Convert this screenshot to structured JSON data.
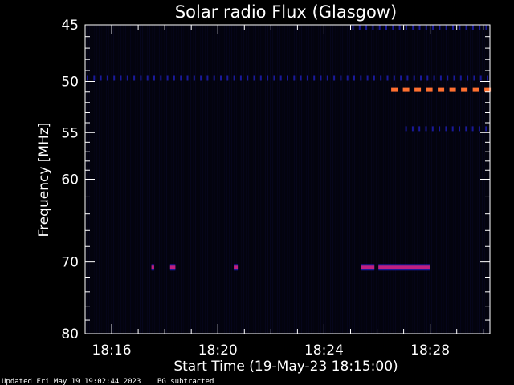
{
  "chart_data": {
    "type": "heatmap",
    "title": "Solar radio Flux (Glasgow)",
    "xlabel": "Start Time (19-May-23 18:15:00)",
    "ylabel": "Frequency [MHz]",
    "y_scale": "log",
    "ylim": [
      45,
      80
    ],
    "xlim": [
      "18:15:00",
      "18:30:15"
    ],
    "x_ticks": [
      "18:16",
      "18:20",
      "18:24",
      "18:28"
    ],
    "y_ticks": [
      45,
      50,
      55,
      60,
      70,
      80
    ],
    "grid": false,
    "colors": {
      "background": "#000000",
      "plot_bg": "#03030e",
      "axis": "#ffffff",
      "low": "#1a1a9a",
      "mid": "#c02080",
      "high": "#ff7030"
    },
    "features": [
      {
        "name": "band",
        "freq_mhz": 49.7,
        "start": "18:15:00",
        "end": "18:30:15",
        "intensity": "low"
      },
      {
        "name": "band",
        "freq_mhz": 45.2,
        "start": "18:25:00",
        "end": "18:30:15",
        "intensity": "low"
      },
      {
        "name": "band",
        "freq_mhz": 54.6,
        "start": "18:27:00",
        "end": "18:30:15",
        "intensity": "low"
      },
      {
        "name": "band",
        "freq_mhz": 50.8,
        "start": "18:26:30",
        "end": "18:30:15",
        "intensity": "high"
      },
      {
        "name": "burst",
        "freq_mhz": 70.7,
        "start": "18:17:30",
        "end": "18:17:36",
        "intensity": "mid"
      },
      {
        "name": "burst",
        "freq_mhz": 70.7,
        "start": "18:18:12",
        "end": "18:18:24",
        "intensity": "mid"
      },
      {
        "name": "burst",
        "freq_mhz": 70.7,
        "start": "18:20:36",
        "end": "18:20:45",
        "intensity": "mid"
      },
      {
        "name": "burst",
        "freq_mhz": 70.7,
        "start": "18:25:24",
        "end": "18:25:54",
        "intensity": "mid"
      },
      {
        "name": "burst",
        "freq_mhz": 70.7,
        "start": "18:26:03",
        "end": "18:28:00",
        "intensity": "mid"
      }
    ]
  },
  "footer": {
    "updated": "Updated Fri May 19 19:02:44 2023",
    "note": "BG subtracted"
  }
}
